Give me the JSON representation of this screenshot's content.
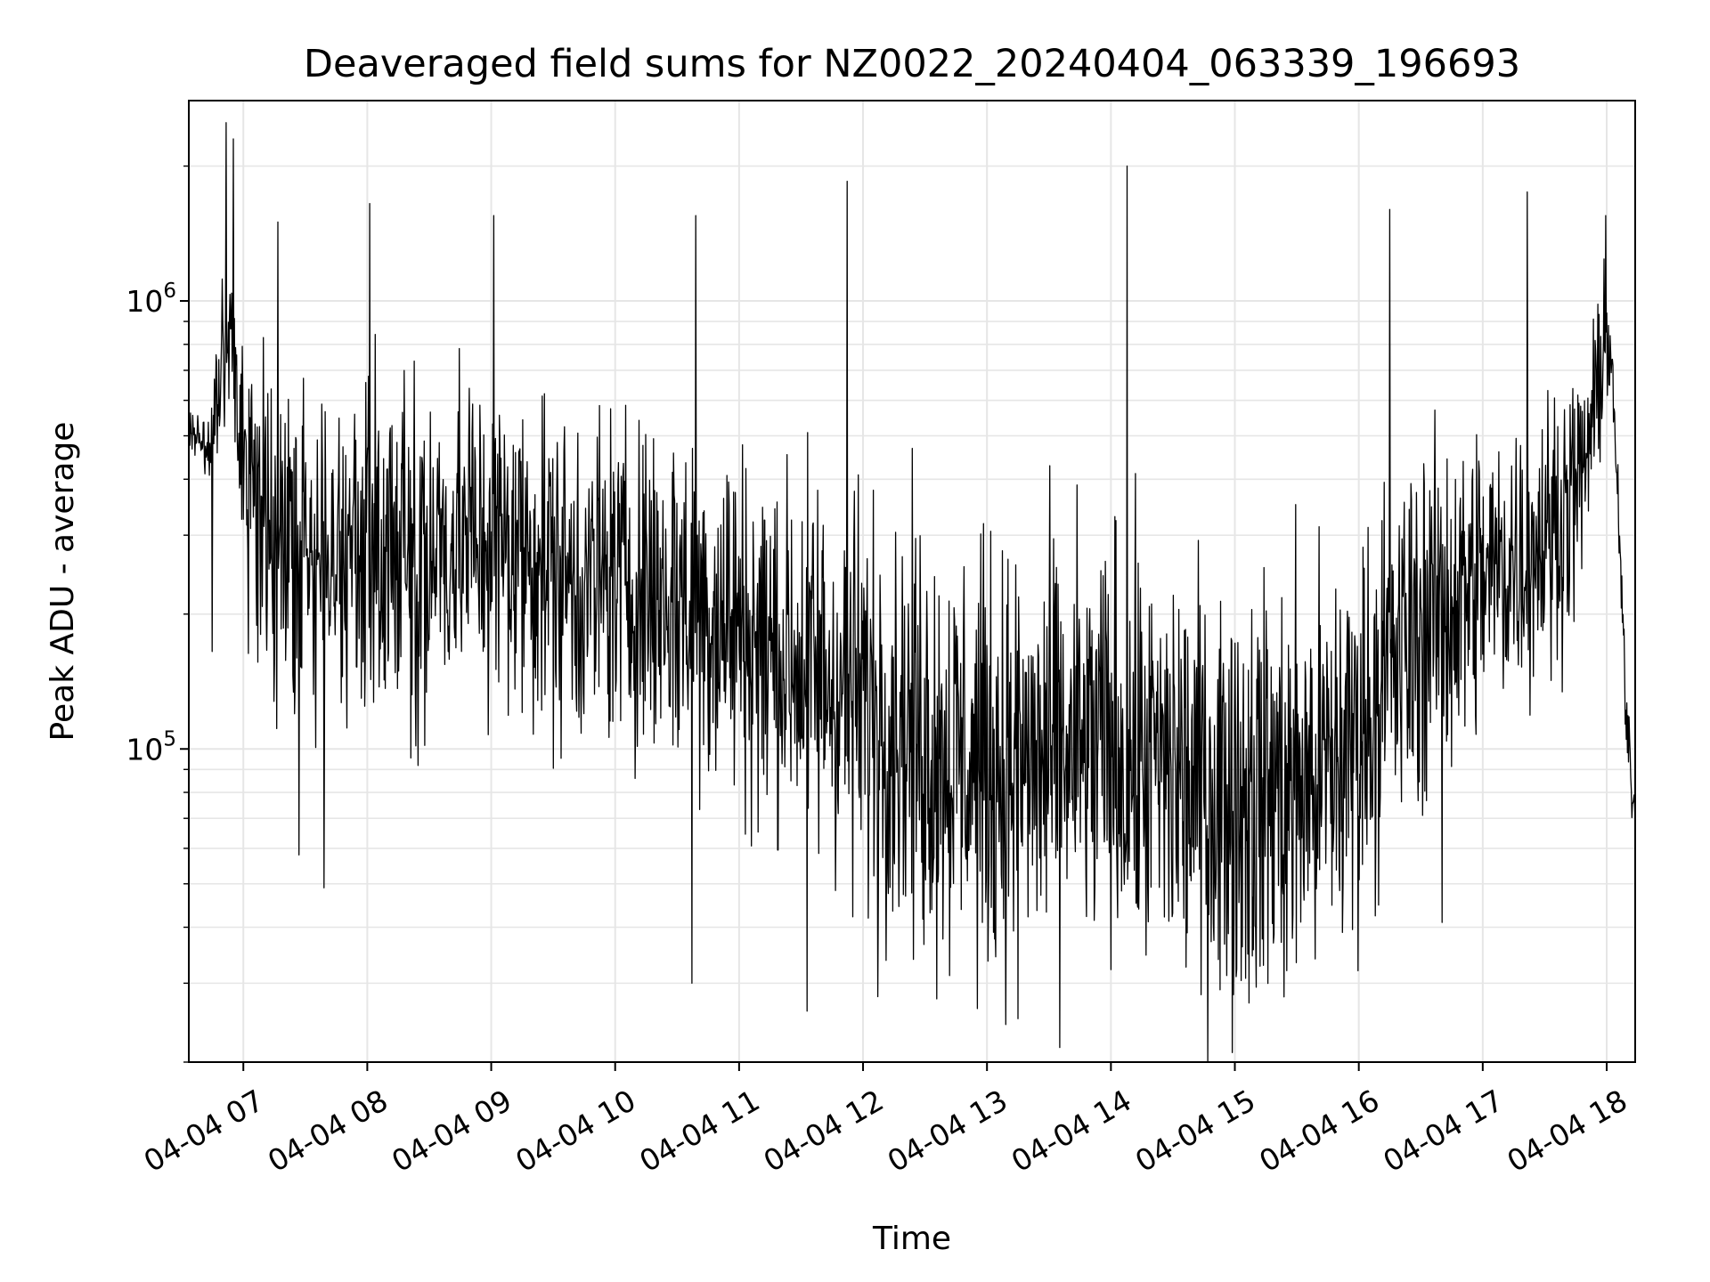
{
  "chart_data": {
    "type": "line",
    "title": "Deaveraged field sums for NZ0022_20240404_063339_196693",
    "xlabel": "Time",
    "ylabel": "Peak ADU - average",
    "yscale": "log",
    "grid": true,
    "x_tick_labels": [
      "04-04 07",
      "04-04 08",
      "04-04 09",
      "04-04 10",
      "04-04 11",
      "04-04 12",
      "04-04 13",
      "04-04 14",
      "04-04 15",
      "04-04 16",
      "04-04 17",
      "04-04 18"
    ],
    "x_tick_values_hours": [
      7,
      8,
      9,
      10,
      11,
      12,
      13,
      14,
      15,
      16,
      17,
      18
    ],
    "xlim_hours": [
      6.56,
      18.23
    ],
    "y_tick_labels": [
      {
        "base": "10",
        "exp": "5",
        "value": 100000
      },
      {
        "base": "10",
        "exp": "6",
        "value": 1000000
      }
    ],
    "ylim": [
      20000,
      2800000
    ],
    "line_color": "#000000",
    "series": [
      {
        "x_hours": [
          6.56,
          6.65,
          6.75,
          6.8,
          6.85,
          6.9,
          6.95,
          7.0,
          7.1,
          7.2,
          7.3,
          7.5,
          7.7,
          7.9,
          8.0,
          8.2,
          8.4,
          8.6,
          8.8,
          9.0,
          9.2,
          9.4,
          9.6,
          9.8,
          10.0,
          10.2,
          10.4,
          10.6,
          10.8,
          11.0,
          11.2,
          11.4,
          11.6,
          11.8,
          12.0,
          12.2,
          12.4,
          12.6,
          12.8,
          13.0,
          13.2,
          13.4,
          13.6,
          13.8,
          14.0,
          14.2,
          14.4,
          14.6,
          14.8,
          15.0,
          15.2,
          15.4,
          15.6,
          15.8,
          16.0,
          16.2,
          16.4,
          16.6,
          16.8,
          17.0,
          17.2,
          17.4,
          17.6,
          17.8,
          17.9,
          18.0,
          18.05,
          18.1,
          18.15,
          18.2,
          18.23
        ],
        "trend": [
          520000,
          500000,
          480000,
          620000,
          820000,
          760000,
          560000,
          400000,
          360000,
          300000,
          280000,
          260000,
          250000,
          270000,
          280000,
          280000,
          270000,
          280000,
          300000,
          290000,
          280000,
          270000,
          240000,
          230000,
          240000,
          230000,
          220000,
          210000,
          200000,
          190000,
          170000,
          160000,
          150000,
          140000,
          130000,
          120000,
          110000,
          100000,
          95000,
          92000,
          90000,
          92000,
          95000,
          98000,
          100000,
          95000,
          90000,
          85000,
          80000,
          80000,
          80000,
          82000,
          85000,
          90000,
          110000,
          140000,
          170000,
          200000,
          220000,
          240000,
          260000,
          280000,
          320000,
          400000,
          550000,
          900000,
          600000,
          300000,
          120000,
          85000,
          70000
        ],
        "spread_log10": [
          0.05,
          0.1,
          0.15,
          0.25,
          0.35,
          0.35,
          0.35,
          0.4,
          0.5,
          0.55,
          0.55,
          0.55,
          0.55,
          0.55,
          0.55,
          0.55,
          0.55,
          0.55,
          0.55,
          0.55,
          0.55,
          0.55,
          0.55,
          0.55,
          0.55,
          0.55,
          0.6,
          0.6,
          0.6,
          0.6,
          0.6,
          0.6,
          0.65,
          0.65,
          0.65,
          0.65,
          0.7,
          0.7,
          0.7,
          0.7,
          0.7,
          0.7,
          0.7,
          0.7,
          0.7,
          0.7,
          0.7,
          0.7,
          0.7,
          0.7,
          0.7,
          0.7,
          0.7,
          0.7,
          0.65,
          0.6,
          0.6,
          0.55,
          0.55,
          0.5,
          0.5,
          0.45,
          0.45,
          0.35,
          0.3,
          0.25,
          0.15,
          0.1,
          0.1,
          0.1,
          0.1
        ],
        "samples": 2600,
        "peaks": [
          {
            "x_hours": 6.86,
            "value": 2500000
          },
          {
            "x_hours": 6.92,
            "value": 2300000
          },
          {
            "x_hours": 7.28,
            "value": 1500000
          },
          {
            "x_hours": 8.02,
            "value": 1650000
          },
          {
            "x_hours": 9.02,
            "value": 1550000
          },
          {
            "x_hours": 10.65,
            "value": 1550000
          },
          {
            "x_hours": 11.87,
            "value": 1850000
          },
          {
            "x_hours": 14.13,
            "value": 2000000
          },
          {
            "x_hours": 16.25,
            "value": 1600000
          },
          {
            "x_hours": 17.36,
            "value": 1750000
          },
          {
            "x_hours": 17.99,
            "value": 1550000
          },
          {
            "x_hours": 6.75,
            "value": 165000
          },
          {
            "x_hours": 7.45,
            "value": 58000
          },
          {
            "x_hours": 7.65,
            "value": 49000
          },
          {
            "x_hours": 10.62,
            "value": 30000
          },
          {
            "x_hours": 11.55,
            "value": 26000
          },
          {
            "x_hours": 12.12,
            "value": 28000
          },
          {
            "x_hours": 13.25,
            "value": 25000
          },
          {
            "x_hours": 14.88,
            "value": 29000
          },
          {
            "x_hours": 15.42,
            "value": 32000
          },
          {
            "x_hours": 16.67,
            "value": 41000
          }
        ]
      }
    ]
  }
}
